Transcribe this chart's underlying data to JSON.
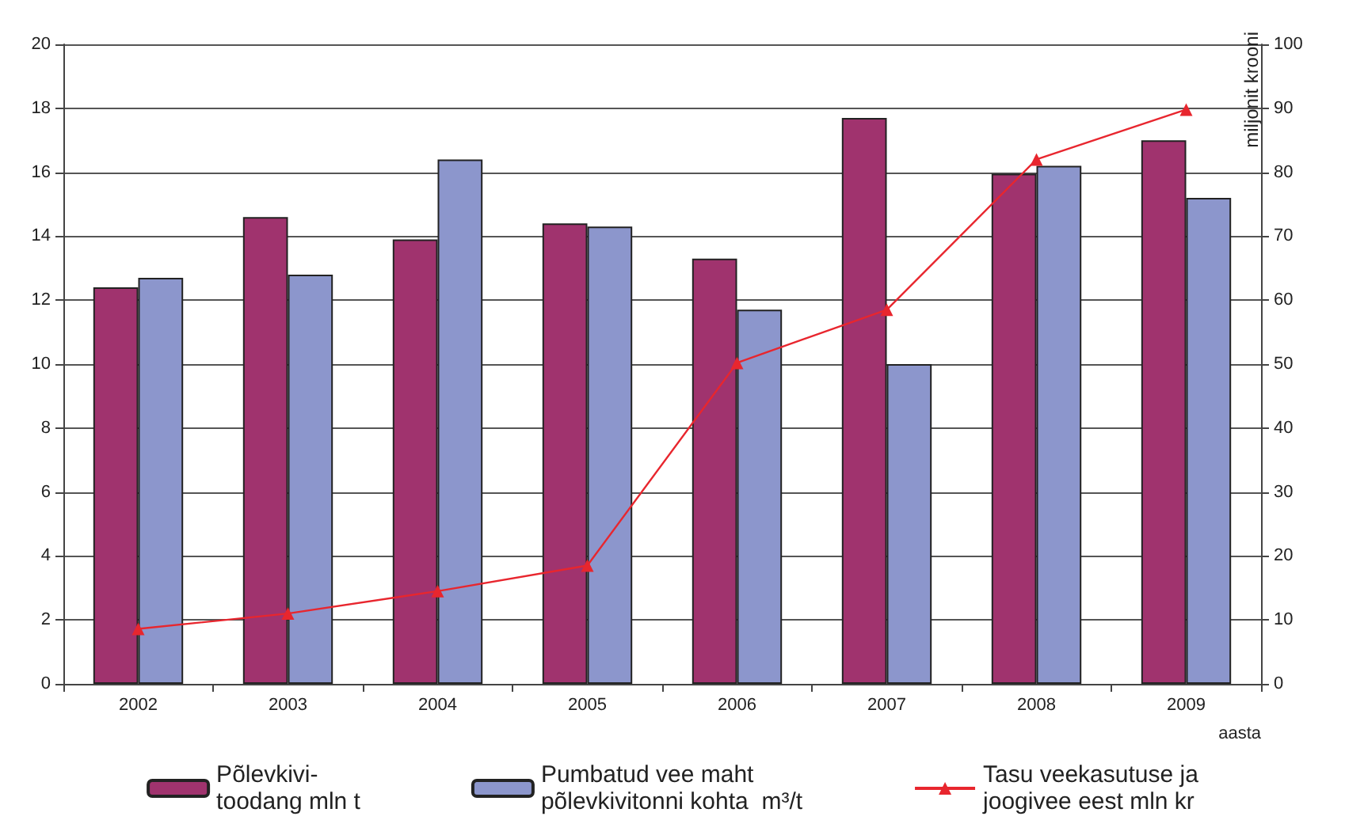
{
  "chart_data": {
    "type": "bar",
    "xlabel": "aasta",
    "y2label": "miljonit krooni",
    "categories": [
      "2002",
      "2003",
      "2004",
      "2005",
      "2006",
      "2007",
      "2008",
      "2009"
    ],
    "series": [
      {
        "name": "Põlevkivi-\ntoodang mln t",
        "color": "#a0336e",
        "values": [
          12.4,
          14.6,
          13.9,
          14.4,
          13.3,
          17.7,
          15.95,
          17.0
        ]
      },
      {
        "name": "Pumbatud vee maht\npõlevkivitonni kohta  m³/t",
        "color": "#8c96cc",
        "values": [
          12.7,
          12.8,
          16.4,
          14.3,
          11.7,
          10.0,
          16.2,
          15.2
        ]
      },
      {
        "name": "Tasu veekasutuse ja\njoogivee eest mln kr",
        "color": "#e8262e",
        "type": "line",
        "axis": "y2",
        "marker": "triangle",
        "values": [
          8.6,
          11,
          14.5,
          18.5,
          50.2,
          58.5,
          82,
          89.8
        ]
      }
    ],
    "ylim": [
      0,
      20
    ],
    "yticks": [
      0,
      2,
      4,
      6,
      8,
      10,
      12,
      14,
      16,
      18,
      20
    ],
    "y2lim": [
      0,
      100
    ],
    "y2ticks": [
      0,
      10,
      20,
      30,
      40,
      50,
      60,
      70,
      80,
      90,
      100
    ],
    "grid": "y",
    "legend": "bottom"
  }
}
